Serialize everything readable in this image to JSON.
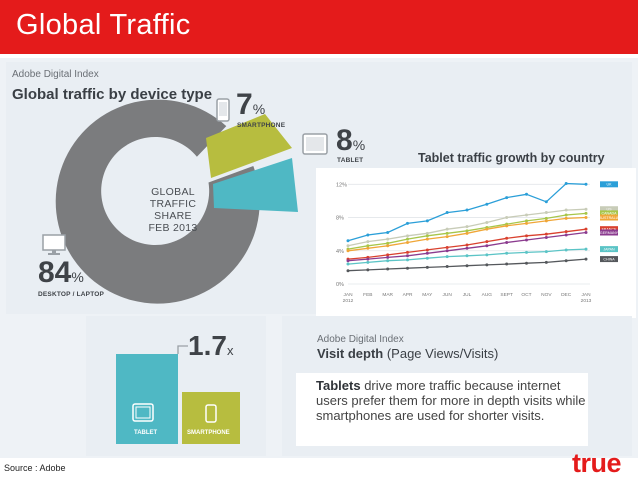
{
  "header": {
    "title": "Global Traffic"
  },
  "infographic": {
    "brand": "Adobe Digital Index",
    "title": "Global traffic by device type",
    "donut": {
      "center_lines": [
        "GLOBAL",
        "TRAFFIC",
        "SHARE",
        "FEB 2013"
      ],
      "segments": [
        {
          "label": "DESKTOP / LAPTOP",
          "value": "84",
          "unit": "%",
          "color": "#7b7c7e"
        },
        {
          "label": "SMARTPHONE",
          "value": "7",
          "unit": "%",
          "color": "#b7bd3f"
        },
        {
          "label": "TABLET",
          "value": "8",
          "unit": "%",
          "color": "#4fb8c4"
        }
      ]
    }
  },
  "chart_data": {
    "type": "line",
    "title": "Tablet traffic growth by country",
    "xlabel": "",
    "ylabel": "",
    "ylim": [
      0,
      13
    ],
    "y_ticks": [
      "12%",
      "8%",
      "4%",
      "0%"
    ],
    "categories": [
      "JAN 2012",
      "FEB",
      "MAR",
      "APR",
      "MAY",
      "JUN",
      "JUL",
      "AUG",
      "SEPT",
      "OCT",
      "NOV",
      "DEC",
      "JAN 2013"
    ],
    "category_labels": [
      [
        "JAN",
        "2012"
      ],
      [
        "FEB"
      ],
      [
        "MAR"
      ],
      [
        "APR"
      ],
      [
        "MAY"
      ],
      [
        "JUN"
      ],
      [
        "JUL"
      ],
      [
        "AUG"
      ],
      [
        "SEPT"
      ],
      [
        "OCT"
      ],
      [
        "NOV"
      ],
      [
        "DEC"
      ],
      [
        "JAN",
        "2013"
      ]
    ],
    "series": [
      {
        "name": "UK",
        "color": "#2b9fd8",
        "values": [
          5.2,
          5.9,
          6.2,
          7.3,
          7.6,
          8.6,
          8.9,
          9.6,
          10.4,
          10.8,
          9.9,
          12.1,
          12.0
        ]
      },
      {
        "name": "US",
        "color": "#c8ccb8",
        "values": [
          4.6,
          5.1,
          5.4,
          5.8,
          6.1,
          6.6,
          6.9,
          7.4,
          8.0,
          8.3,
          8.6,
          8.9,
          9.0
        ]
      },
      {
        "name": "CANADA",
        "color": "#a7c64a",
        "values": [
          4.2,
          4.6,
          4.9,
          5.4,
          5.8,
          6.1,
          6.4,
          6.8,
          7.2,
          7.6,
          7.9,
          8.3,
          8.5
        ]
      },
      {
        "name": "AUSTRALIA",
        "color": "#f0a637",
        "values": [
          4.0,
          4.3,
          4.6,
          5.0,
          5.4,
          5.7,
          6.1,
          6.6,
          7.0,
          7.3,
          7.6,
          7.9,
          8.0
        ]
      },
      {
        "name": "FRANCE",
        "color": "#d9412e",
        "values": [
          3.0,
          3.2,
          3.5,
          3.8,
          4.1,
          4.4,
          4.7,
          5.1,
          5.5,
          5.8,
          6.0,
          6.3,
          6.6
        ]
      },
      {
        "name": "GERMANY",
        "color": "#8b3b8f",
        "values": [
          2.8,
          3.0,
          3.2,
          3.4,
          3.7,
          4.0,
          4.3,
          4.6,
          5.0,
          5.3,
          5.6,
          5.9,
          6.2
        ]
      },
      {
        "name": "JAPAN",
        "color": "#5bc4c6",
        "values": [
          2.4,
          2.6,
          2.8,
          2.9,
          3.1,
          3.3,
          3.4,
          3.5,
          3.7,
          3.8,
          3.9,
          4.1,
          4.2
        ]
      },
      {
        "name": "CHINA",
        "color": "#55585c",
        "values": [
          1.6,
          1.7,
          1.8,
          1.9,
          2.0,
          2.1,
          2.2,
          2.3,
          2.4,
          2.5,
          2.6,
          2.8,
          3.0
        ]
      }
    ]
  },
  "bars": {
    "multiplier": "1.7",
    "multiplier_unit": "x",
    "tablet_label": "TABLET",
    "smartphone_label": "SMARTPHONE",
    "tablet_color": "#4fb8c4",
    "smartphone_color": "#b7bd3f"
  },
  "visit": {
    "brand": "Adobe Digital Index",
    "title_bold": "Visit depth",
    "title_rest": "(Page Views/Visits)",
    "callout_bold": "Tablets",
    "callout_rest": "drive more traffic because internet users prefer them for more in depth visits while smartphones are used for shorter visits."
  },
  "footer": {
    "source": "Source : Adobe",
    "logo": "true"
  }
}
